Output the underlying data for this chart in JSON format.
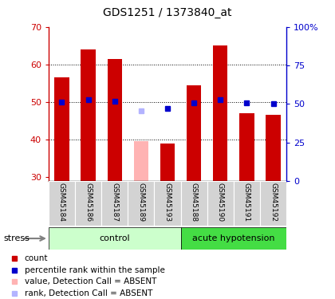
{
  "title": "GDS1251 / 1373840_at",
  "samples": [
    "GSM45184",
    "GSM45186",
    "GSM45187",
    "GSM45189",
    "GSM45193",
    "GSM45188",
    "GSM45190",
    "GSM45191",
    "GSM45192"
  ],
  "bar_values": [
    56.5,
    64.0,
    61.5,
    39.5,
    39.0,
    54.5,
    65.0,
    47.0,
    46.5
  ],
  "bar_colors": [
    "#cc0000",
    "#cc0000",
    "#cc0000",
    "#ffb3b3",
    "#cc0000",
    "#cc0000",
    "#cc0000",
    "#cc0000",
    "#cc0000"
  ],
  "rank_values": [
    51.0,
    52.5,
    51.5,
    45.5,
    47.0,
    50.5,
    52.5,
    50.5,
    50.0
  ],
  "rank_colors": [
    "#0000cc",
    "#0000cc",
    "#0000cc",
    "#b3b3ff",
    "#0000cc",
    "#0000cc",
    "#0000cc",
    "#0000cc",
    "#0000cc"
  ],
  "absent_mask": [
    false,
    false,
    false,
    true,
    false,
    false,
    false,
    false,
    false
  ],
  "ylim_left": [
    29,
    70
  ],
  "ylim_right": [
    0,
    100
  ],
  "yticks_left": [
    30,
    40,
    50,
    60,
    70
  ],
  "ytick_labels_right": [
    "0",
    "25",
    "50",
    "75",
    "100%"
  ],
  "yticks_right": [
    0,
    25,
    50,
    75,
    100
  ],
  "groups": [
    {
      "label": "control",
      "start": 0,
      "end": 5,
      "color": "#ccffcc"
    },
    {
      "label": "acute hypotension",
      "start": 5,
      "end": 9,
      "color": "#44dd44"
    }
  ],
  "bar_width": 0.55,
  "left_tick_color": "#cc0000",
  "right_tick_color": "#0000cc",
  "sample_bg_color": "#d3d3d3",
  "legend_items": [
    {
      "label": "count",
      "color": "#cc0000"
    },
    {
      "label": "percentile rank within the sample",
      "color": "#0000cc"
    },
    {
      "label": "value, Detection Call = ABSENT",
      "color": "#ffb3b3"
    },
    {
      "label": "rank, Detection Call = ABSENT",
      "color": "#b3b3ff"
    }
  ]
}
